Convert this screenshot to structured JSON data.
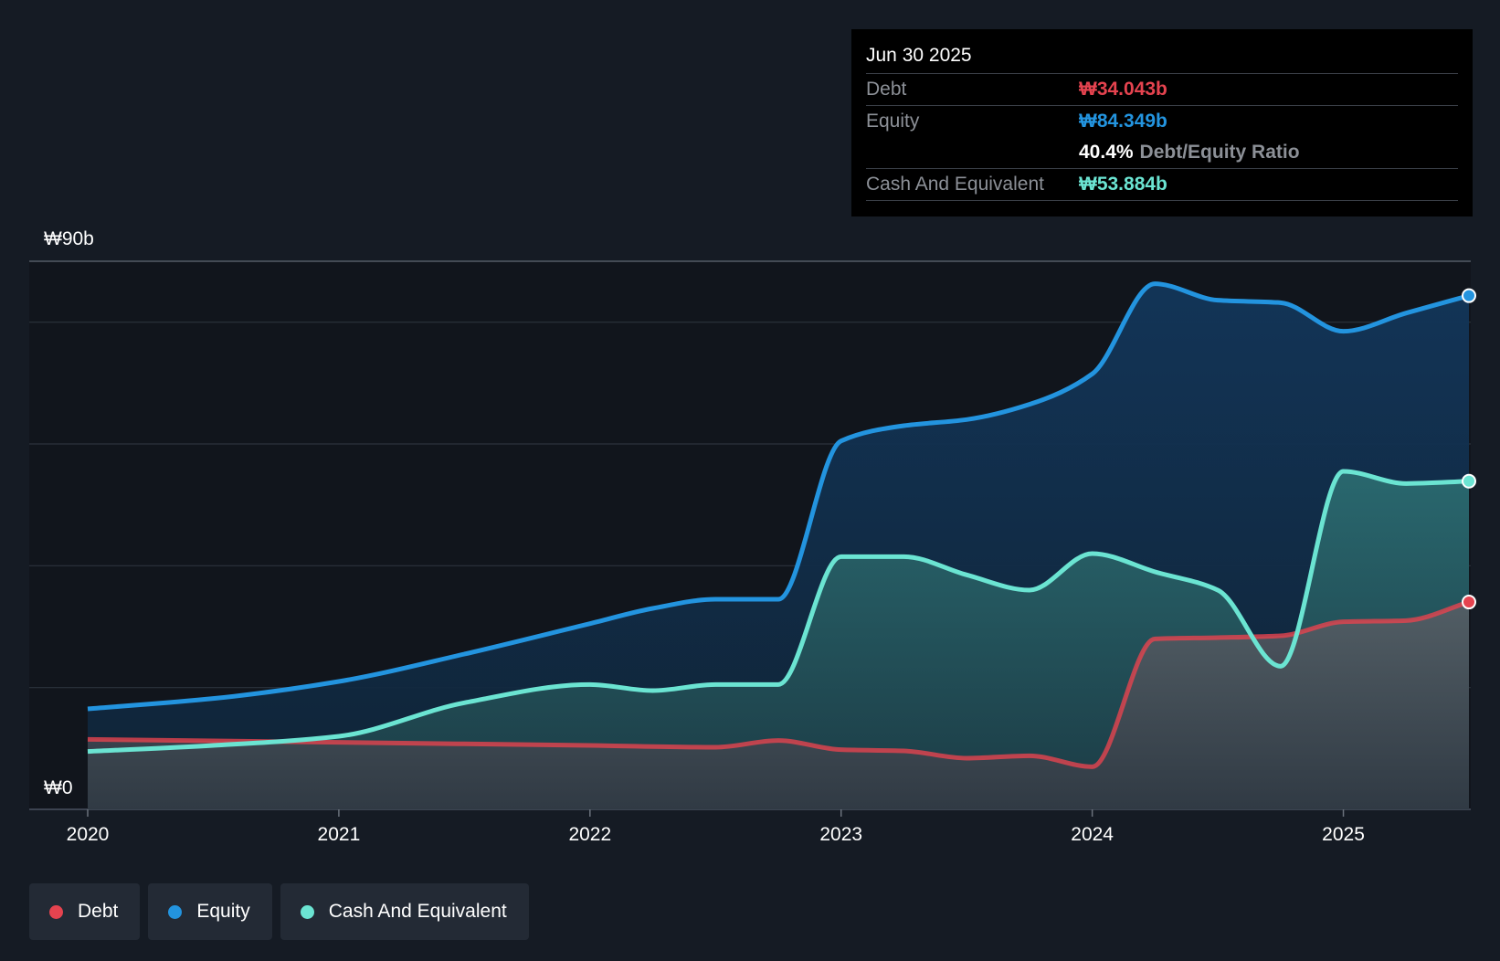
{
  "tooltip": {
    "date": "Jun 30 2025",
    "debt_label": "Debt",
    "debt_value": "₩34.043b",
    "equity_label": "Equity",
    "equity_value": "₩84.349b",
    "ratio_value": "40.4%",
    "ratio_label": "Debt/Equity Ratio",
    "cash_label": "Cash And Equivalent",
    "cash_value": "₩53.884b"
  },
  "legend": [
    {
      "label": "Debt",
      "color": "#e5434f"
    },
    {
      "label": "Equity",
      "color": "#2394df"
    },
    {
      "label": "Cash And Equivalent",
      "color": "#6be4d2"
    }
  ],
  "chart_data": {
    "type": "area",
    "title": "",
    "xlabel": "",
    "ylabel": "",
    "ylim": [
      0,
      90
    ],
    "y_tick_labels": [
      "₩0",
      "₩90b"
    ],
    "x_ticks": [
      2020,
      2021,
      2022,
      2023,
      2024,
      2025
    ],
    "x_tick_labels": [
      "2020",
      "2021",
      "2022",
      "2023",
      "2024",
      "2025"
    ],
    "xlim": [
      2020,
      2025.5
    ],
    "gridlines": [
      0,
      20,
      40,
      60,
      80,
      90
    ],
    "series": [
      {
        "name": "Debt",
        "color": "#e5434f",
        "x": [
          2020,
          2021,
          2022,
          2022.5,
          2022.75,
          2023,
          2023.25,
          2023.5,
          2023.75,
          2024,
          2024.25,
          2024.5,
          2024.75,
          2025,
          2025.25,
          2025.5
        ],
        "values": [
          11.5,
          11.0,
          10.5,
          10.2,
          11.3,
          9.8,
          9.6,
          8.4,
          8.8,
          7.0,
          28.0,
          28.2,
          28.5,
          30.8,
          31.0,
          34.043
        ]
      },
      {
        "name": "Equity",
        "color": "#2394df",
        "x": [
          2020,
          2020.5,
          2021,
          2021.5,
          2022,
          2022.25,
          2022.5,
          2022.75,
          2023,
          2023.25,
          2023.5,
          2023.75,
          2024,
          2024.25,
          2024.5,
          2024.75,
          2025,
          2025.25,
          2025.5
        ],
        "values": [
          16.5,
          18.2,
          21.0,
          25.5,
          30.5,
          33.0,
          34.5,
          34.5,
          60.5,
          63.0,
          64.0,
          66.5,
          71.5,
          86.3,
          83.6,
          83.2,
          78.5,
          81.5,
          84.349
        ]
      },
      {
        "name": "Cash And Equivalent",
        "color": "#6be4d2",
        "x": [
          2020,
          2020.5,
          2021,
          2021.5,
          2022,
          2022.25,
          2022.5,
          2022.75,
          2023,
          2023.25,
          2023.5,
          2023.75,
          2024,
          2024.25,
          2024.5,
          2024.75,
          2025,
          2025.25,
          2025.5
        ],
        "values": [
          9.5,
          10.5,
          12.0,
          17.5,
          20.5,
          19.5,
          20.5,
          20.5,
          41.5,
          41.5,
          38.5,
          36.0,
          42.0,
          39.0,
          36.0,
          23.5,
          55.5,
          53.5,
          53.884
        ]
      }
    ]
  }
}
